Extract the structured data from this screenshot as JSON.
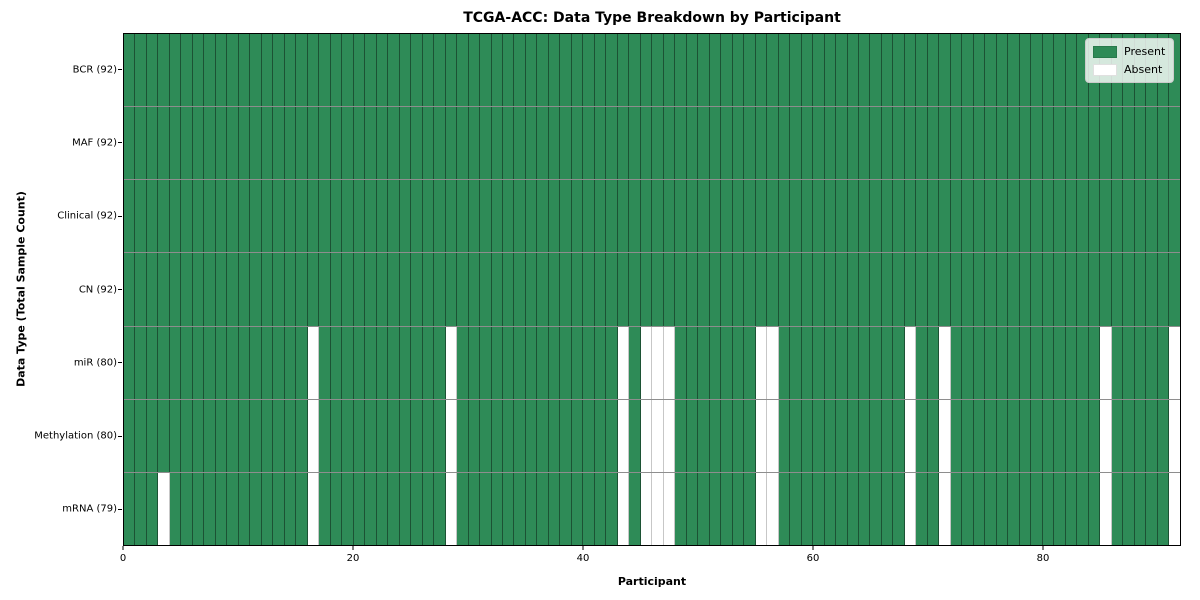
{
  "figure": {
    "title": "TCGA-ACC: Data Type Breakdown by Participant",
    "xlabel": "Participant",
    "ylabel": "Data Type (Total Sample Count)"
  },
  "legend": {
    "items": [
      {
        "name": "present",
        "label": "Present",
        "color": "#2e8b57"
      },
      {
        "name": "absent",
        "label": "Absent",
        "color": "#ffffff"
      }
    ]
  },
  "chart_data": {
    "type": "heatmap",
    "title": "TCGA-ACC: Data Type Breakdown by Participant",
    "xlabel": "Participant",
    "ylabel": "Data Type (Total Sample Count)",
    "legend_position": "upper right",
    "grid": "cell borders",
    "n_participants": 92,
    "x_range": [
      0,
      92
    ],
    "x_ticks": [
      0,
      20,
      40,
      60,
      80
    ],
    "colors": {
      "present": "#2e8b57",
      "absent": "#ffffff"
    },
    "value_labels": [
      "Present",
      "Absent"
    ],
    "rows": [
      {
        "label": "BCR (92)",
        "data_type": "BCR",
        "present_count": 92,
        "absent_participants": []
      },
      {
        "label": "MAF (92)",
        "data_type": "MAF",
        "present_count": 92,
        "absent_participants": []
      },
      {
        "label": "Clinical (92)",
        "data_type": "Clinical",
        "present_count": 92,
        "absent_participants": []
      },
      {
        "label": "CN (92)",
        "data_type": "CN",
        "present_count": 92,
        "absent_participants": []
      },
      {
        "label": "miR (80)",
        "data_type": "miR",
        "present_count": 80,
        "absent_participants": [
          16,
          28,
          43,
          45,
          46,
          47,
          55,
          56,
          68,
          71,
          85,
          91
        ]
      },
      {
        "label": "Methylation (80)",
        "data_type": "Methylation",
        "present_count": 80,
        "absent_participants": [
          16,
          28,
          43,
          45,
          46,
          47,
          55,
          56,
          68,
          71,
          85,
          91
        ]
      },
      {
        "label": "mRNA (79)",
        "data_type": "mRNA",
        "present_count": 79,
        "absent_participants": [
          3,
          16,
          28,
          43,
          45,
          46,
          47,
          55,
          56,
          68,
          71,
          85,
          91
        ]
      }
    ]
  }
}
